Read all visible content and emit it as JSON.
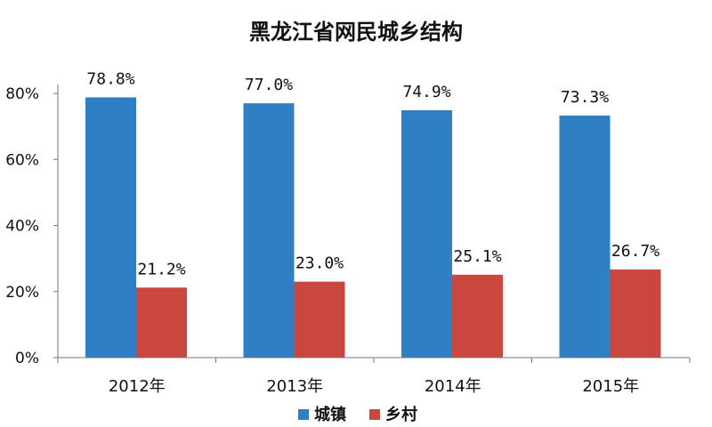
{
  "chart_data": {
    "type": "bar",
    "title": "黑龙江省网民城乡结构",
    "categories": [
      "2012年",
      "2013年",
      "2014年",
      "2015年"
    ],
    "series": [
      {
        "name": "城镇",
        "values": [
          78.8,
          77.0,
          74.9,
          73.3
        ],
        "labels": [
          "78.8%",
          "77.0%",
          "74.9%",
          "73.3%"
        ],
        "color": "#2e7fc4"
      },
      {
        "name": "乡村",
        "values": [
          21.2,
          23.0,
          25.1,
          26.7
        ],
        "labels": [
          "21.2%",
          "23.0%",
          "25.1%",
          "26.7%"
        ],
        "color": "#c9473f"
      }
    ],
    "yticks": [
      "0%",
      "20%",
      "40%",
      "60%",
      "80%"
    ],
    "ylim": [
      0,
      80
    ],
    "xlabel": "",
    "ylabel": "",
    "grid": false,
    "legend": "bottom-center"
  }
}
